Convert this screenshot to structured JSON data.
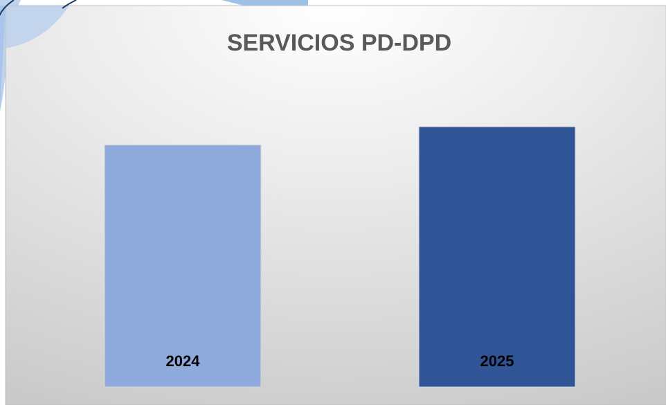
{
  "chart_data": {
    "type": "bar",
    "title": "SERVICIOS PD-DPD",
    "categories": [
      "2024",
      "2025"
    ],
    "values": [
      93,
      100
    ],
    "colors": [
      "#8faadc",
      "#2f5597"
    ]
  }
}
